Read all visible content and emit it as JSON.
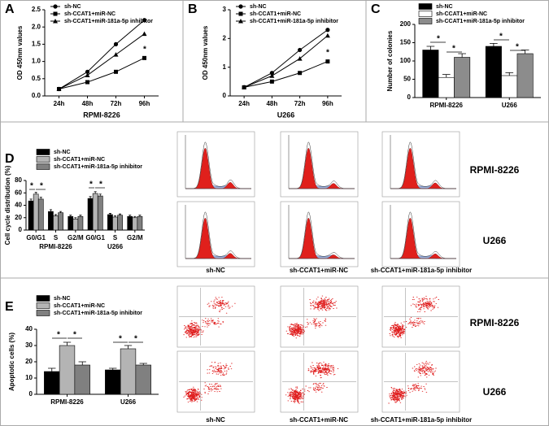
{
  "figure": {
    "panels": [
      "A",
      "B",
      "C",
      "D",
      "E"
    ],
    "cell_lines": [
      "RPMI-8226",
      "U266"
    ],
    "conditions": [
      "sh-NC",
      "sh-CCAT1+miR-NC",
      "sh-CCAT1+miR-181a-5p inhibitor"
    ]
  },
  "chart_data": [
    {
      "type": "line",
      "x_label": "RPMI-8226",
      "y_label": "OD 450nm values",
      "categories": [
        "24h",
        "48h",
        "72h",
        "96h"
      ],
      "ylim": [
        0,
        2.5
      ],
      "yticks": [
        {
          "value": 0,
          "label": "0.0"
        },
        0.5,
        {
          "value": 1,
          "label": "1.0"
        },
        1.5,
        {
          "value": 2,
          "label": "2.0"
        },
        2.5
      ],
      "series": [
        {
          "name": "sh-NC",
          "color": "#000000",
          "marker": "circle",
          "values": [
            0.2,
            0.7,
            1.5,
            2.2
          ]
        },
        {
          "name": "sh-CCAT1+miR-NC",
          "color": "#000000",
          "marker": "square",
          "values": [
            0.2,
            0.4,
            0.7,
            1.1
          ]
        },
        {
          "name": "sh-CCAT1+miR-181a-5p inhibitor",
          "color": "#000000",
          "marker": "triangle",
          "values": [
            0.2,
            0.6,
            1.2,
            1.8
          ]
        }
      ],
      "annotations": [
        "*"
      ]
    },
    {
      "type": "line",
      "x_label": "U266",
      "y_label": "OD 450nm values",
      "categories": [
        "24h",
        "48h",
        "72h",
        "96h"
      ],
      "ylim": [
        0,
        3
      ],
      "yticks": [
        0,
        1,
        2,
        3
      ],
      "series": [
        {
          "name": "sh-NC",
          "color": "#000000",
          "marker": "circle",
          "values": [
            0.3,
            0.8,
            1.6,
            2.3
          ]
        },
        {
          "name": "sh-CCAT1+miR-NC",
          "color": "#000000",
          "marker": "square",
          "values": [
            0.3,
            0.5,
            0.8,
            1.2
          ]
        },
        {
          "name": "sh-CCAT1+miR-181a-5p inhibitor",
          "color": "#000000",
          "marker": "triangle",
          "values": [
            0.3,
            0.7,
            1.3,
            2.1
          ]
        }
      ],
      "annotations": [
        "*"
      ]
    },
    {
      "type": "bar",
      "y_label": "Number of colonies",
      "categories": [
        "RPMI-8226",
        "U266"
      ],
      "ylim": [
        0,
        200
      ],
      "yticks": [
        0,
        50,
        100,
        150,
        200
      ],
      "series": [
        {
          "name": "sh-NC",
          "color": "#000000",
          "values": [
            130,
            140
          ],
          "errors": [
            10,
            8
          ]
        },
        {
          "name": "sh-CCAT1+miR-NC",
          "color": "#ffffff",
          "values": [
            55,
            60
          ],
          "errors": [
            8,
            8
          ]
        },
        {
          "name": "sh-CCAT1+miR-181a-5p inhibitor",
          "color": "#8c8c8c",
          "values": [
            110,
            120
          ],
          "errors": [
            10,
            10
          ]
        }
      ],
      "annotations": [
        "*",
        "*",
        "*",
        "*"
      ]
    },
    {
      "type": "bar",
      "y_label": "Cell cycle distribution (%)",
      "categories": [
        "G0/G1",
        "S",
        "G2/M",
        "G0/G1",
        "S",
        "G2/M"
      ],
      "group_labels": [
        "RPMI-8226",
        "U266"
      ],
      "ylim": [
        0,
        80
      ],
      "yticks": [
        0,
        20,
        40,
        60,
        80
      ],
      "series": [
        {
          "name": "sh-NC",
          "color": "#000000",
          "values": [
            47,
            30,
            22,
            51,
            25,
            22
          ],
          "errors": [
            3,
            3,
            2,
            3,
            2,
            2
          ]
        },
        {
          "name": "sh-CCAT1+miR-NC",
          "color": "#b4b4b4",
          "values": [
            58,
            23,
            18,
            59,
            21,
            20
          ],
          "errors": [
            3,
            2,
            2,
            3,
            2,
            2
          ]
        },
        {
          "name": "sh-CCAT1+miR-181a-5p inhibitor",
          "color": "#808080",
          "values": [
            50,
            28,
            22,
            55,
            24,
            22
          ],
          "errors": [
            3,
            2,
            2,
            3,
            2,
            2
          ]
        }
      ],
      "annotations": [
        "*",
        "*",
        "*",
        "*"
      ]
    },
    {
      "type": "bar",
      "y_label": "Apoptotic cells (%)",
      "categories": [
        "RPMI-8226",
        "U266"
      ],
      "ylim": [
        0,
        40
      ],
      "yticks": [
        0,
        10,
        20,
        30,
        40
      ],
      "series": [
        {
          "name": "sh-NC",
          "color": "#000000",
          "values": [
            14,
            15
          ],
          "errors": [
            2,
            1
          ]
        },
        {
          "name": "sh-CCAT1+miR-NC",
          "color": "#b4b4b4",
          "values": [
            30,
            28
          ],
          "errors": [
            2,
            2
          ]
        },
        {
          "name": "sh-CCAT1+miR-181a-5p inhibitor",
          "color": "#808080",
          "values": [
            18,
            18
          ],
          "errors": [
            2,
            1
          ]
        }
      ],
      "annotations": [
        "*",
        "*",
        "*",
        "*"
      ]
    }
  ]
}
